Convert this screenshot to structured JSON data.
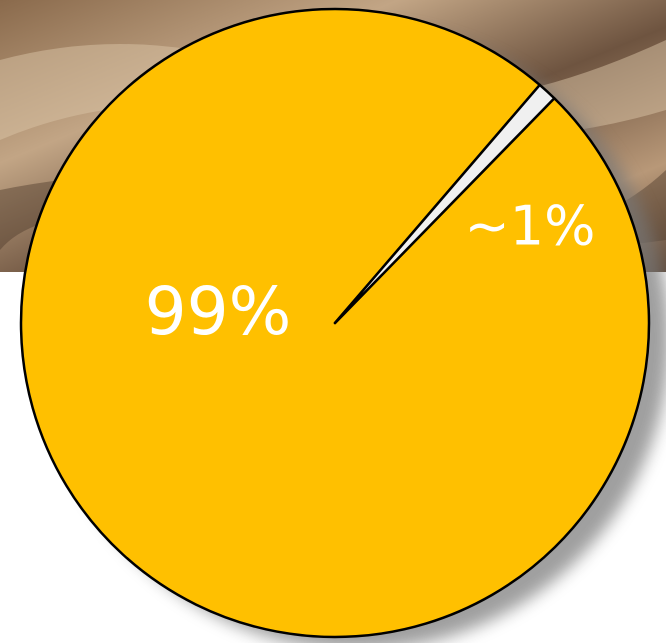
{
  "chart_data": {
    "type": "pie",
    "values": [
      99,
      1
    ],
    "value_labels": [
      "99%",
      "~1%"
    ],
    "colors": [
      "#FFC000",
      "#F0F0F0"
    ]
  }
}
